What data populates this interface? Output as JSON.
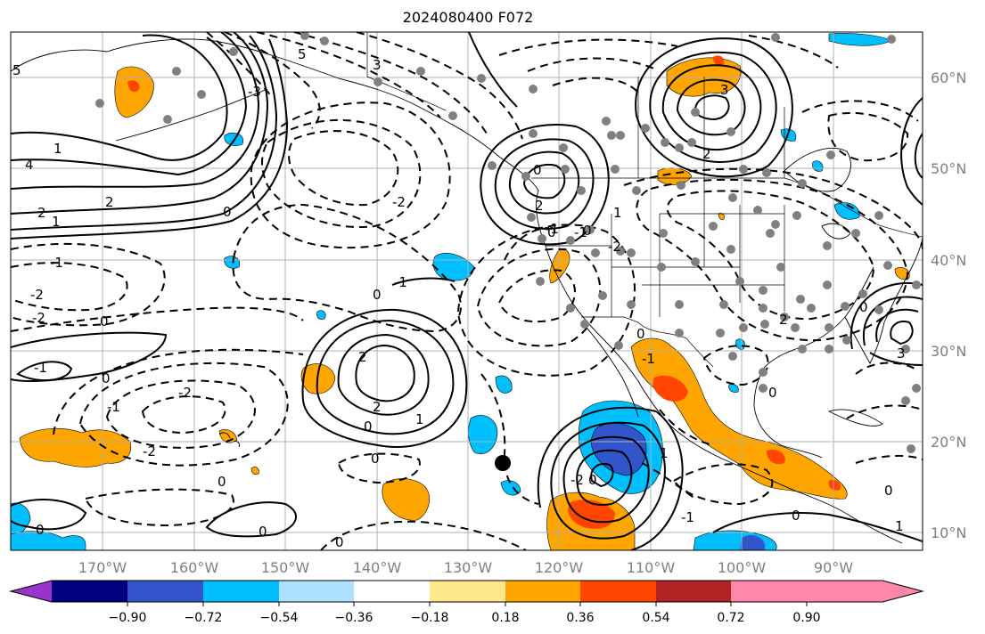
{
  "title": "2024080400 F072",
  "map": {
    "longitude_labels": [
      "170°W",
      "160°W",
      "150°W",
      "140°W",
      "130°W",
      "120°W",
      "110°W",
      "100°W",
      "90°W"
    ],
    "latitude_labels": [
      "60°N",
      "50°N",
      "40°N",
      "30°N",
      "20°N",
      "10°N"
    ],
    "contour_labels": [
      "5",
      "4",
      "2",
      "1",
      "0",
      "-1",
      "-2",
      "-2",
      "-1",
      "0",
      "2",
      "1",
      "0",
      "-2",
      "0",
      "-2",
      "-1",
      "-2",
      "0",
      "0",
      "-3",
      "5",
      "3",
      "2",
      "1",
      "0",
      "2",
      "0",
      "0",
      "-1",
      "0",
      "2",
      "3",
      "2",
      "1",
      "0",
      "-1",
      "-2",
      "3",
      "0",
      "0",
      "1",
      "-1",
      "0",
      "2",
      "0",
      "-2",
      "-1",
      "0",
      "0",
      "0",
      "-1",
      "0",
      "1"
    ],
    "marker": "black-dot",
    "observation_points": "gray-dots",
    "colors": {
      "positive_contour": "#000000",
      "negative_contour": "#000000",
      "land_outline": "#000000",
      "grid": "#b0b0b0",
      "station": "#808080"
    }
  },
  "colorbar": {
    "tick_labels": [
      "−0.90",
      "−0.72",
      "−0.54",
      "−0.36",
      "−0.18",
      "0.18",
      "0.36",
      "0.54",
      "0.72",
      "0.90"
    ],
    "colors": [
      "#9933cc",
      "#000080",
      "#3355cc",
      "#00bfff",
      "#aee0ff",
      "#ffffff",
      "#ffe88a",
      "#ffa500",
      "#ff4500",
      "#b22222",
      "#ff88aa"
    ]
  }
}
